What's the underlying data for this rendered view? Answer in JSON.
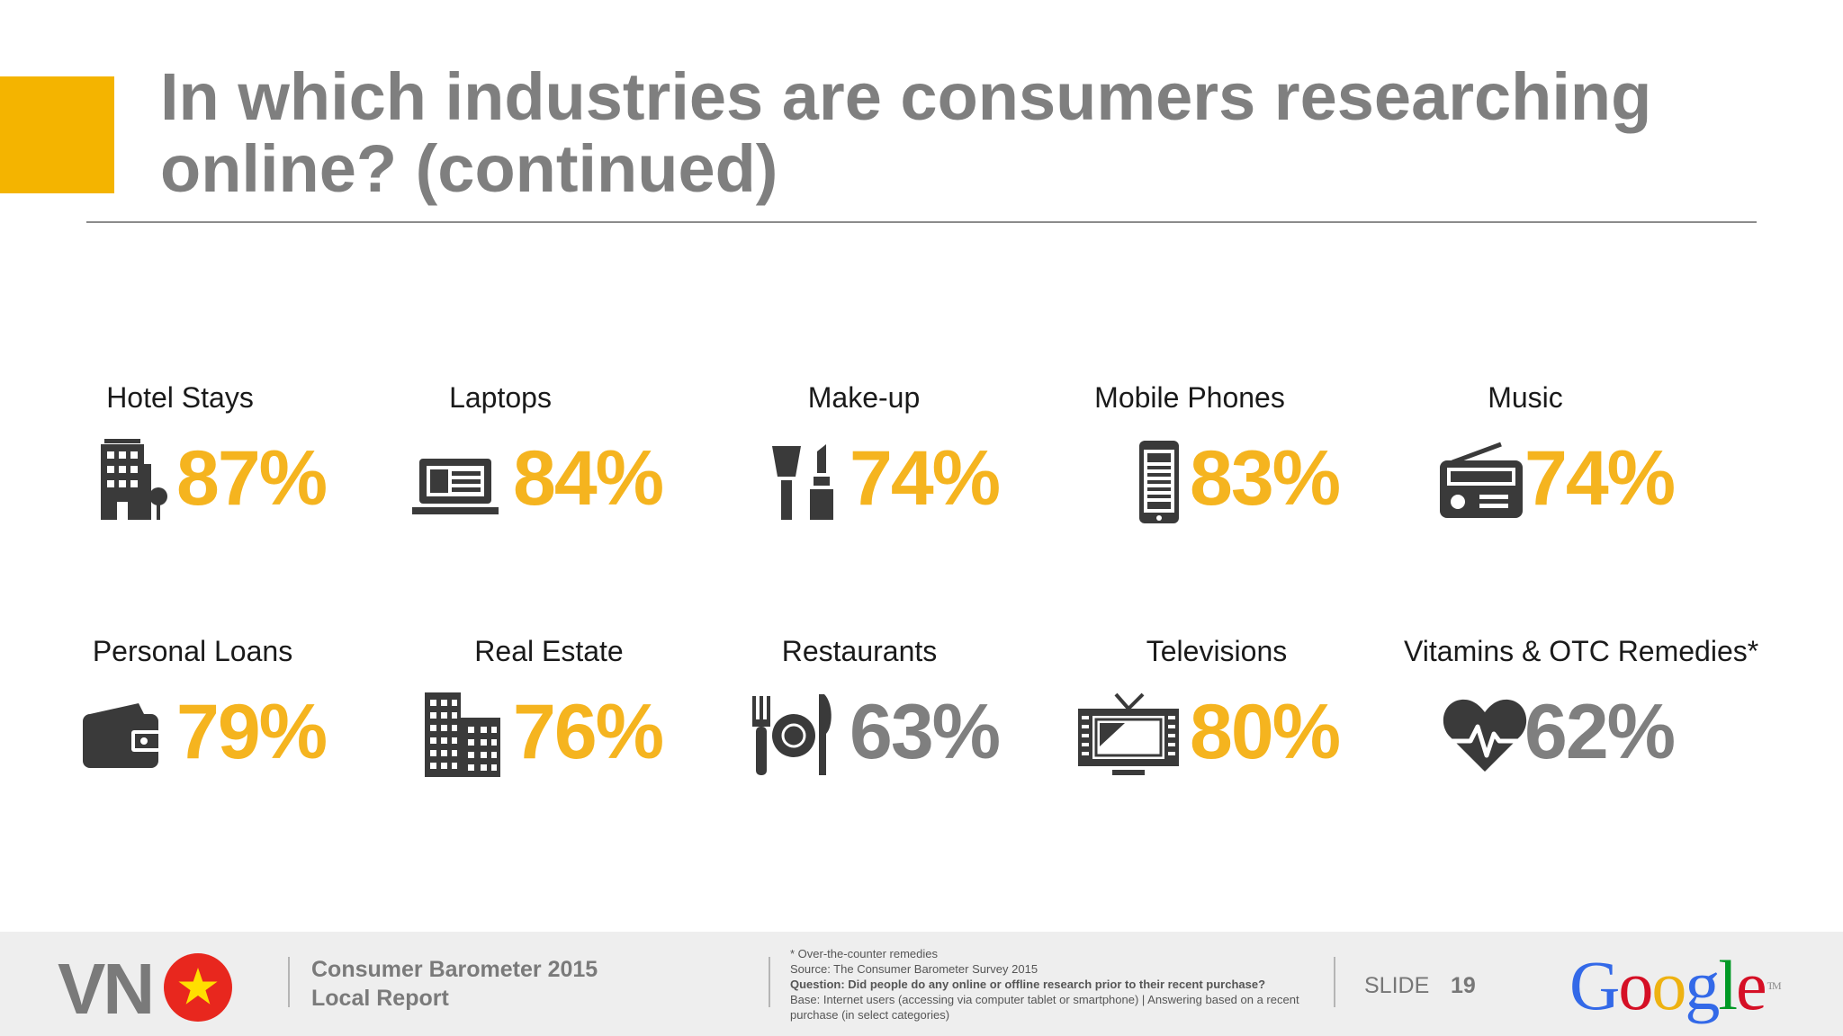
{
  "title": {
    "line1": "In which industries are consumers researching",
    "line2": "online? (continued)"
  },
  "colors": {
    "accent": "#f4b400",
    "value_highlight": "#f5b41f",
    "value_muted": "#7f7f7f",
    "icon": "#3a3a3a"
  },
  "stats": [
    {
      "label": "Hotel Stays",
      "value": "87%",
      "icon": "hotel-icon",
      "highlight": true
    },
    {
      "label": "Laptops",
      "value": "84%",
      "icon": "laptop-icon",
      "highlight": true
    },
    {
      "label": "Make-up",
      "value": "74%",
      "icon": "makeup-icon",
      "highlight": true
    },
    {
      "label": "Mobile Phones",
      "value": "83%",
      "icon": "mobile-phone-icon",
      "highlight": true
    },
    {
      "label": "Music",
      "value": "74%",
      "icon": "radio-icon",
      "highlight": true
    },
    {
      "label": "Personal Loans",
      "value": "79%",
      "icon": "wallet-icon",
      "highlight": true
    },
    {
      "label": "Real Estate",
      "value": "76%",
      "icon": "building-icon",
      "highlight": true
    },
    {
      "label": "Restaurants",
      "value": "63%",
      "icon": "restaurant-icon",
      "highlight": false
    },
    {
      "label": "Televisions",
      "value": "80%",
      "icon": "television-icon",
      "highlight": true
    },
    {
      "label": "Vitamins & OTC Remedies*",
      "value": "62%",
      "icon": "heart-pulse-icon",
      "highlight": false
    }
  ],
  "footer": {
    "country": "VN",
    "flag_icon": "vietnam-flag-icon",
    "report_line1": "Consumer Barometer 2015",
    "report_line2": "Local Report",
    "notes": {
      "footnote": "* Over-the-counter remedies",
      "source": "Source: The Consumer Barometer Survey 2015",
      "question": "Question: Did people do any online or offline research prior to their recent purchase?",
      "base": "Base: Internet users (accessing via computer  tablet or smartphone) | Answering based on a recent purchase (in select categories)"
    },
    "slide_label": "SLIDE",
    "slide_number": "19",
    "logo_text": "Google",
    "logo_tm": "TM"
  }
}
